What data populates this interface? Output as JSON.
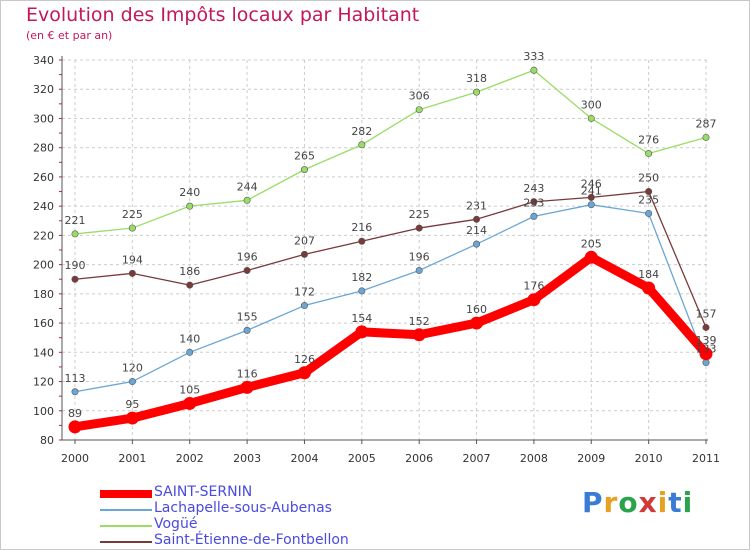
{
  "chart_data": {
    "type": "line",
    "title": "Evolution des Impôts locaux par Habitant",
    "subtitle": "(en € et par an)",
    "x": [
      "2000",
      "2001",
      "2002",
      "2003",
      "2004",
      "2005",
      "2006",
      "2007",
      "2008",
      "2009",
      "2010",
      "2011"
    ],
    "ylim": [
      80,
      340
    ],
    "yticks": [
      80,
      100,
      120,
      140,
      160,
      180,
      200,
      220,
      240,
      260,
      280,
      300,
      320,
      340
    ],
    "grid": true,
    "legend_position": "bottom",
    "series": [
      {
        "name": "SAINT-SERNIN",
        "color": "#ff0000",
        "values": [
          89,
          95,
          105,
          116,
          126,
          154,
          152,
          160,
          176,
          205,
          184,
          139
        ]
      },
      {
        "name": "Lachapelle-sous-Aubenas",
        "color": "#6aa6d6",
        "values": [
          113,
          120,
          140,
          155,
          172,
          182,
          196,
          214,
          233,
          241,
          235,
          133
        ]
      },
      {
        "name": "Vogüé",
        "color": "#99dd66",
        "values": [
          221,
          225,
          240,
          244,
          265,
          282,
          306,
          318,
          333,
          300,
          276,
          287
        ]
      },
      {
        "name": "Saint-Étienne-de-Fontbellon",
        "color": "#7a3a3a",
        "values": [
          190,
          194,
          186,
          196,
          207,
          216,
          225,
          231,
          243,
          246,
          250,
          157
        ]
      }
    ]
  },
  "logo": {
    "text": "Proxiti"
  }
}
